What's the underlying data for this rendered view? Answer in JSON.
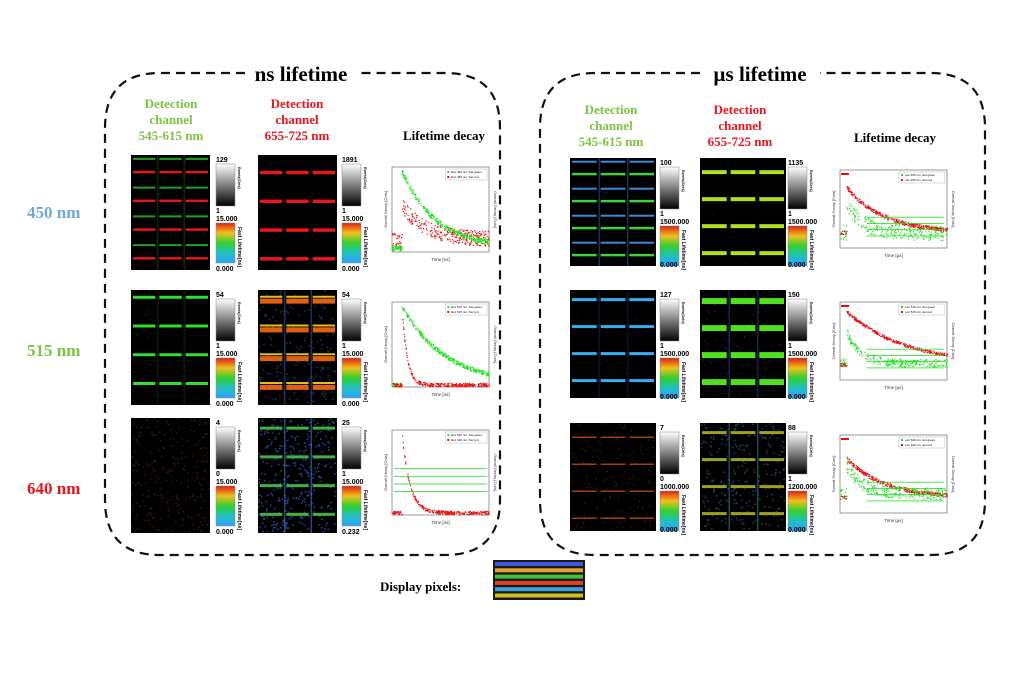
{
  "sections": {
    "ns": {
      "title": "ns lifetime",
      "time_label": "Time [ns]"
    },
    "us": {
      "title": "µs lifetime",
      "time_label": "Time [µs]"
    }
  },
  "column_headers": {
    "green": {
      "line1": "Detection",
      "line2": "channel",
      "line3": "545-615 nm",
      "color": "#7dc242"
    },
    "red": {
      "line1": "Detection",
      "line2": "channel",
      "line3": "655-725 nm",
      "color": "#e8141c"
    },
    "decay": {
      "label": "Lifetime decay"
    }
  },
  "rows": [
    {
      "label": "450 nm",
      "color": "#6fa8dc"
    },
    {
      "label": "515 nm",
      "color": "#7dc242"
    },
    {
      "label": "640 nm",
      "color": "#e8141c"
    }
  ],
  "colorbar_labels": {
    "events": "Events[Cnts]",
    "lifetime": "Fast Lifetime[ns]"
  },
  "decay_axis_label": "Overall Decay [Cnts]",
  "ns_panels": [
    {
      "green": {
        "ev_max": "129",
        "ev_min": "1",
        "lt_max": "15.000",
        "lt_min": "0.000"
      },
      "red": {
        "ev_max": "1891",
        "ev_min": "1",
        "lt_max": "15.000",
        "lt_min": "0.000"
      },
      "legend": [
        "Exc 450 nm, Det green",
        "Exc 450 nm, Det red"
      ]
    },
    {
      "green": {
        "ev_max": "54",
        "ev_min": "1",
        "lt_max": "15.000",
        "lt_min": "0.000"
      },
      "red": {
        "ev_max": "54",
        "ev_min": "1",
        "lt_max": "15.000",
        "lt_min": "0.000"
      },
      "legend": [
        "Exc 515 nm, Det green",
        "Exc 515 nm, Det red"
      ]
    },
    {
      "green": {
        "ev_max": "4",
        "ev_min": "0",
        "lt_max": "15.000",
        "lt_min": "0.000"
      },
      "red": {
        "ev_max": "25",
        "ev_min": "1",
        "lt_max": "15.000",
        "lt_min": "0.232"
      },
      "legend": [
        "Exc 640 nm, Det green",
        "Exc 640 nm, Det red"
      ]
    }
  ],
  "us_panels": [
    {
      "green": {
        "ev_max": "100",
        "ev_min": "1",
        "lt_max": "1500.000",
        "lt_min": "0.000"
      },
      "red": {
        "ev_max": "1135",
        "ev_min": "1",
        "lt_max": "1500.000",
        "lt_min": "0.000"
      },
      "legend": [
        "exc 450 nm, det green",
        "exc 450 nm, det red"
      ]
    },
    {
      "green": {
        "ev_max": "127",
        "ev_min": "1",
        "lt_max": "1500.000",
        "lt_min": "0.000"
      },
      "red": {
        "ev_max": "150",
        "ev_min": "1",
        "lt_max": "1500.000",
        "lt_min": "0.000"
      },
      "legend": [
        "exc 515 nm, det green",
        "exc 515 nm, det red"
      ]
    },
    {
      "green": {
        "ev_max": "7",
        "ev_min": "0",
        "lt_max": "1000.000",
        "lt_min": "0.000"
      },
      "red": {
        "ev_max": "88",
        "ev_min": "1",
        "lt_max": "1200.000",
        "lt_min": "0.000"
      },
      "legend": [
        "exc 640 nm, det green",
        "exc 640 nm, det red"
      ]
    }
  ],
  "display_pixels": {
    "label": "Display pixels:",
    "stripe_colors": [
      "#3b5bd6",
      "#e8a030",
      "#40c040",
      "#e04020",
      "#40a0e0",
      "#d0c020"
    ]
  },
  "series_colors": {
    "green": "#22e022",
    "red": "#e81010"
  }
}
